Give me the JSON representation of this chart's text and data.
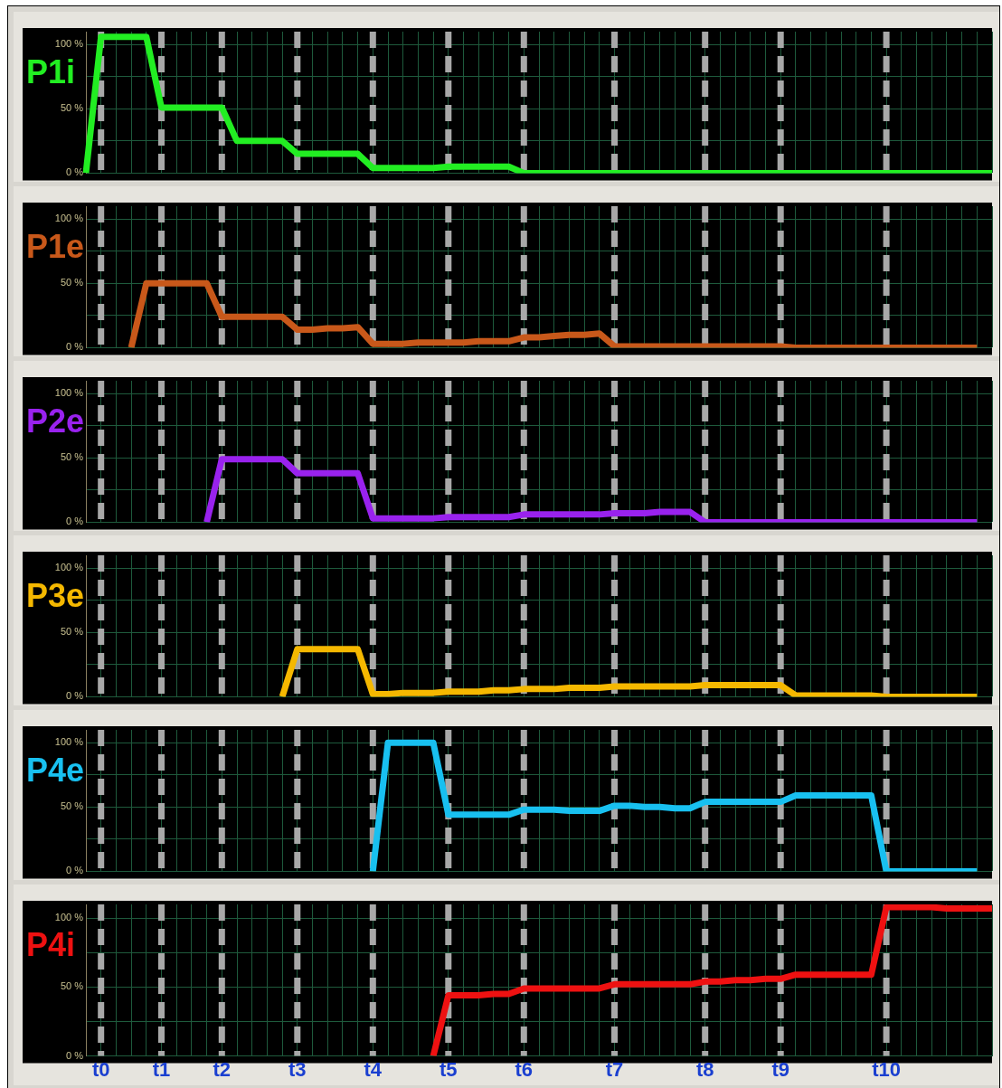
{
  "chart_data": [
    {
      "type": "line",
      "title": "P1i",
      "categories": [
        null,
        null,
        null,
        null,
        null,
        null,
        null,
        null,
        null,
        null,
        null,
        null,
        null,
        null,
        null,
        null,
        null,
        null,
        null,
        null,
        null,
        null,
        null,
        null,
        null,
        null,
        null,
        null,
        null,
        null,
        null,
        null,
        null,
        null,
        null,
        null,
        null,
        null,
        null,
        null,
        null,
        null,
        null,
        null,
        null,
        null,
        null,
        null,
        null,
        null,
        null,
        null,
        null,
        null,
        null,
        null,
        null,
        null,
        null,
        null,
        null
      ],
      "series": [
        {
          "color": "#22ee22",
          "values": [
            0,
            106,
            106,
            106,
            106,
            51,
            51,
            51,
            51,
            51,
            25,
            25,
            25,
            25,
            15,
            15,
            15,
            15,
            15,
            4,
            4,
            4,
            4,
            4,
            5,
            5,
            5,
            5,
            5,
            0,
            0,
            0,
            0,
            0,
            0,
            0,
            0,
            0,
            0,
            0,
            0,
            0,
            0,
            0,
            0,
            0,
            0,
            0,
            0,
            0,
            0,
            0,
            0,
            0,
            0,
            0,
            0,
            0,
            0,
            0,
            0
          ]
        }
      ],
      "ylim": [
        0,
        110
      ],
      "yticks": [
        {
          "value": 0,
          "label": "0 %"
        },
        {
          "value": 25,
          "label": null
        },
        {
          "value": 50,
          "label": "50 %"
        },
        {
          "value": 75,
          "label": null
        },
        {
          "value": 100,
          "label": "100 %"
        }
      ],
      "grid": true,
      "legend": false,
      "marker": "none",
      "line_style": "solid"
    },
    {
      "type": "line",
      "title": "P1e",
      "categories": [
        null,
        null,
        null,
        null,
        null,
        null,
        null,
        null,
        null,
        null,
        null,
        null,
        null,
        null,
        null,
        null,
        null,
        null,
        null,
        null,
        null,
        null,
        null,
        null,
        null,
        null,
        null,
        null,
        null,
        null,
        null,
        null,
        null,
        null,
        null,
        null,
        null,
        null,
        null,
        null,
        null,
        null,
        null,
        null,
        null,
        null,
        null,
        null,
        null,
        null,
        null,
        null,
        null,
        null,
        null,
        null,
        null,
        null,
        null,
        null,
        null
      ],
      "series": [
        {
          "color": "#c8581a",
          "values": [
            null,
            null,
            null,
            0,
            50,
            50,
            50,
            50,
            50,
            24,
            24,
            24,
            24,
            24,
            14,
            14,
            15,
            15,
            16,
            3,
            3,
            3,
            4,
            4,
            4,
            4,
            5,
            5,
            5,
            8,
            8,
            9,
            10,
            10,
            11,
            1,
            1,
            1,
            1,
            1,
            1,
            1,
            1,
            1,
            1,
            1,
            1,
            0,
            0,
            0,
            0,
            0,
            0,
            0,
            0,
            0,
            0,
            0,
            0,
            0,
            null
          ]
        }
      ],
      "ylim": [
        0,
        110
      ],
      "yticks": [
        {
          "value": 0,
          "label": "0 %"
        },
        {
          "value": 25,
          "label": null
        },
        {
          "value": 50,
          "label": "50 %"
        },
        {
          "value": 75,
          "label": null
        },
        {
          "value": 100,
          "label": "100 %"
        }
      ],
      "grid": true,
      "legend": false,
      "marker": "none",
      "line_style": "solid"
    },
    {
      "type": "line",
      "title": "P2e",
      "categories": [
        null,
        null,
        null,
        null,
        null,
        null,
        null,
        null,
        null,
        null,
        null,
        null,
        null,
        null,
        null,
        null,
        null,
        null,
        null,
        null,
        null,
        null,
        null,
        null,
        null,
        null,
        null,
        null,
        null,
        null,
        null,
        null,
        null,
        null,
        null,
        null,
        null,
        null,
        null,
        null,
        null,
        null,
        null,
        null,
        null,
        null,
        null,
        null,
        null,
        null,
        null,
        null,
        null,
        null,
        null,
        null,
        null,
        null,
        null,
        null,
        null
      ],
      "series": [
        {
          "color": "#9922ee",
          "values": [
            null,
            null,
            null,
            null,
            null,
            null,
            null,
            null,
            0,
            49,
            49,
            49,
            49,
            49,
            38,
            38,
            38,
            38,
            38,
            3,
            3,
            3,
            3,
            3,
            4,
            4,
            4,
            4,
            4,
            6,
            6,
            6,
            6,
            6,
            6,
            7,
            7,
            7,
            8,
            8,
            8,
            0,
            0,
            0,
            0,
            0,
            0,
            0,
            0,
            0,
            0,
            0,
            0,
            0,
            0,
            0,
            0,
            0,
            0,
            0,
            null
          ]
        }
      ],
      "ylim": [
        0,
        110
      ],
      "yticks": [
        {
          "value": 0,
          "label": "0 %"
        },
        {
          "value": 25,
          "label": null
        },
        {
          "value": 50,
          "label": "50 %"
        },
        {
          "value": 75,
          "label": null
        },
        {
          "value": 100,
          "label": "100 %"
        }
      ],
      "grid": true,
      "legend": false,
      "marker": "none",
      "line_style": "solid"
    },
    {
      "type": "line",
      "title": "P3e",
      "categories": [
        null,
        null,
        null,
        null,
        null,
        null,
        null,
        null,
        null,
        null,
        null,
        null,
        null,
        null,
        null,
        null,
        null,
        null,
        null,
        null,
        null,
        null,
        null,
        null,
        null,
        null,
        null,
        null,
        null,
        null,
        null,
        null,
        null,
        null,
        null,
        null,
        null,
        null,
        null,
        null,
        null,
        null,
        null,
        null,
        null,
        null,
        null,
        null,
        null,
        null,
        null,
        null,
        null,
        null,
        null,
        null,
        null,
        null,
        null,
        null,
        null
      ],
      "series": [
        {
          "color": "#f5b800",
          "values": [
            null,
            null,
            null,
            null,
            null,
            null,
            null,
            null,
            null,
            null,
            null,
            null,
            null,
            0,
            37,
            37,
            37,
            37,
            37,
            2,
            2,
            3,
            3,
            3,
            4,
            4,
            4,
            5,
            5,
            6,
            6,
            6,
            7,
            7,
            7,
            8,
            8,
            8,
            8,
            8,
            8,
            9,
            9,
            9,
            9,
            9,
            9,
            1,
            1,
            1,
            1,
            1,
            1,
            0,
            0,
            0,
            0,
            0,
            0,
            0,
            null
          ]
        }
      ],
      "ylim": [
        0,
        110
      ],
      "yticks": [
        {
          "value": 0,
          "label": "0 %"
        },
        {
          "value": 25,
          "label": null
        },
        {
          "value": 50,
          "label": "50 %"
        },
        {
          "value": 75,
          "label": null
        },
        {
          "value": 100,
          "label": "100 %"
        }
      ],
      "grid": true,
      "legend": false,
      "marker": "none",
      "line_style": "solid"
    },
    {
      "type": "line",
      "title": "P4e",
      "categories": [
        null,
        null,
        null,
        null,
        null,
        null,
        null,
        null,
        null,
        null,
        null,
        null,
        null,
        null,
        null,
        null,
        null,
        null,
        null,
        null,
        null,
        null,
        null,
        null,
        null,
        null,
        null,
        null,
        null,
        null,
        null,
        null,
        null,
        null,
        null,
        null,
        null,
        null,
        null,
        null,
        null,
        null,
        null,
        null,
        null,
        null,
        null,
        null,
        null,
        null,
        null,
        null,
        null,
        null,
        null,
        null,
        null,
        null,
        null,
        null,
        null
      ],
      "series": [
        {
          "color": "#18c0f0",
          "values": [
            null,
            null,
            null,
            null,
            null,
            null,
            null,
            null,
            null,
            null,
            null,
            null,
            null,
            null,
            null,
            null,
            null,
            null,
            null,
            0,
            100,
            100,
            100,
            100,
            44,
            44,
            44,
            44,
            44,
            48,
            48,
            48,
            47,
            47,
            47,
            51,
            51,
            50,
            50,
            49,
            49,
            54,
            54,
            54,
            54,
            54,
            54,
            59,
            59,
            59,
            59,
            59,
            59,
            0,
            0,
            0,
            0,
            0,
            0,
            0,
            null
          ]
        }
      ],
      "ylim": [
        0,
        110
      ],
      "yticks": [
        {
          "value": 0,
          "label": "0 %"
        },
        {
          "value": 25,
          "label": null
        },
        {
          "value": 50,
          "label": "50 %"
        },
        {
          "value": 75,
          "label": null
        },
        {
          "value": 100,
          "label": "100 %"
        }
      ],
      "grid": true,
      "legend": false,
      "marker": "none",
      "line_style": "solid"
    },
    {
      "type": "line",
      "title": "P4i",
      "categories": [
        null,
        "t0",
        null,
        null,
        null,
        "t1",
        null,
        null,
        null,
        "t2",
        null,
        null,
        null,
        null,
        "t3",
        null,
        null,
        null,
        null,
        "t4",
        null,
        null,
        null,
        null,
        "t5",
        null,
        null,
        null,
        null,
        "t6",
        null,
        null,
        null,
        null,
        null,
        "t7",
        null,
        null,
        null,
        null,
        null,
        "t8",
        null,
        null,
        null,
        null,
        "t9",
        null,
        null,
        null,
        null,
        null,
        null,
        "t10",
        null,
        null,
        null,
        null,
        null,
        null,
        null
      ],
      "series": [
        {
          "color": "#ee1111",
          "values": [
            null,
            null,
            null,
            null,
            null,
            null,
            null,
            null,
            null,
            null,
            null,
            null,
            null,
            null,
            null,
            null,
            null,
            null,
            null,
            null,
            null,
            null,
            null,
            0,
            44,
            44,
            44,
            45,
            45,
            49,
            49,
            49,
            49,
            49,
            49,
            52,
            52,
            52,
            52,
            52,
            52,
            54,
            54,
            55,
            55,
            56,
            56,
            59,
            59,
            59,
            59,
            59,
            59,
            108,
            108,
            108,
            108,
            107,
            107,
            107,
            107
          ]
        }
      ],
      "ylim": [
        0,
        110
      ],
      "yticks": [
        {
          "value": 0,
          "label": "0 %"
        },
        {
          "value": 25,
          "label": null
        },
        {
          "value": 50,
          "label": "50 %"
        },
        {
          "value": 75,
          "label": null
        },
        {
          "value": 100,
          "label": "100 %"
        }
      ],
      "grid": true,
      "legend": false,
      "marker": "none",
      "line_style": "solid"
    }
  ]
}
